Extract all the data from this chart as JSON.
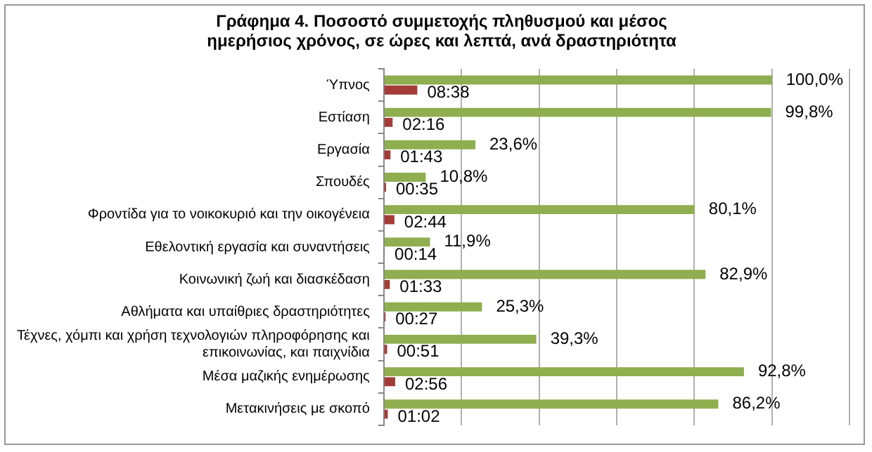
{
  "chart_data": {
    "type": "bar",
    "orientation": "horizontal",
    "title": "Γράφημα 4. Ποσοστό συμμετοχής πληθυσμού και μέσος ημερήσιος χρόνος, σε ώρες και λεπτά, ανά δραστηριότητα",
    "categories": [
      "Ύπνος",
      "Εστίαση",
      "Εργασία",
      "Σπουδές",
      "Φροντίδα για το νοικοκυριό και την οικογένεια",
      "Εθελοντική εργασία και συναντήσεις",
      "Κοινωνική ζωή και διασκέδαση",
      "Αθλήματα και υπαίθριες δραστηριότητες",
      "Τέχνες, χόμπι και χρήση τεχνολογιών πληροφόρησης και επικοινωνίας, και παιχνίδια",
      "Μέσα μαζικής ενημέρωσης",
      "Μετακινήσεις με σκοπό"
    ],
    "series": [
      {
        "color": "#8fae4f",
        "values": [
          100.0,
          99.8,
          23.6,
          10.8,
          80.1,
          11.9,
          82.9,
          25.3,
          39.3,
          92.8,
          86.2
        ],
        "value_labels": [
          "100,0%",
          "99,8%",
          "23,6%",
          "10,8%",
          "80,1%",
          "11,9%",
          "82,9%",
          "25,3%",
          "39,3%",
          "92,8%",
          "86,2%"
        ]
      },
      {
        "color": "#a33b37",
        "values": [
          8.633,
          2.267,
          1.717,
          0.583,
          2.733,
          0.233,
          1.55,
          0.45,
          0.85,
          2.933,
          1.033
        ],
        "value_labels": [
          "08:38",
          "02:16",
          "01:43",
          "00:35",
          "02:44",
          "00:14",
          "01:33",
          "00:27",
          "00:51",
          "02:56",
          "01:02"
        ]
      }
    ],
    "xlim": [
      0,
      120
    ],
    "xticks": [
      {
        "value": 0,
        "label": null
      },
      {
        "value": 20,
        "label": null
      },
      {
        "value": 40,
        "label": null
      },
      {
        "value": 60,
        "label": null
      },
      {
        "value": 80,
        "label": null
      },
      {
        "value": 100,
        "label": null
      },
      {
        "value": 120,
        "label": null
      }
    ],
    "tick_labels": "y",
    "grid": "x",
    "legend": false
  }
}
